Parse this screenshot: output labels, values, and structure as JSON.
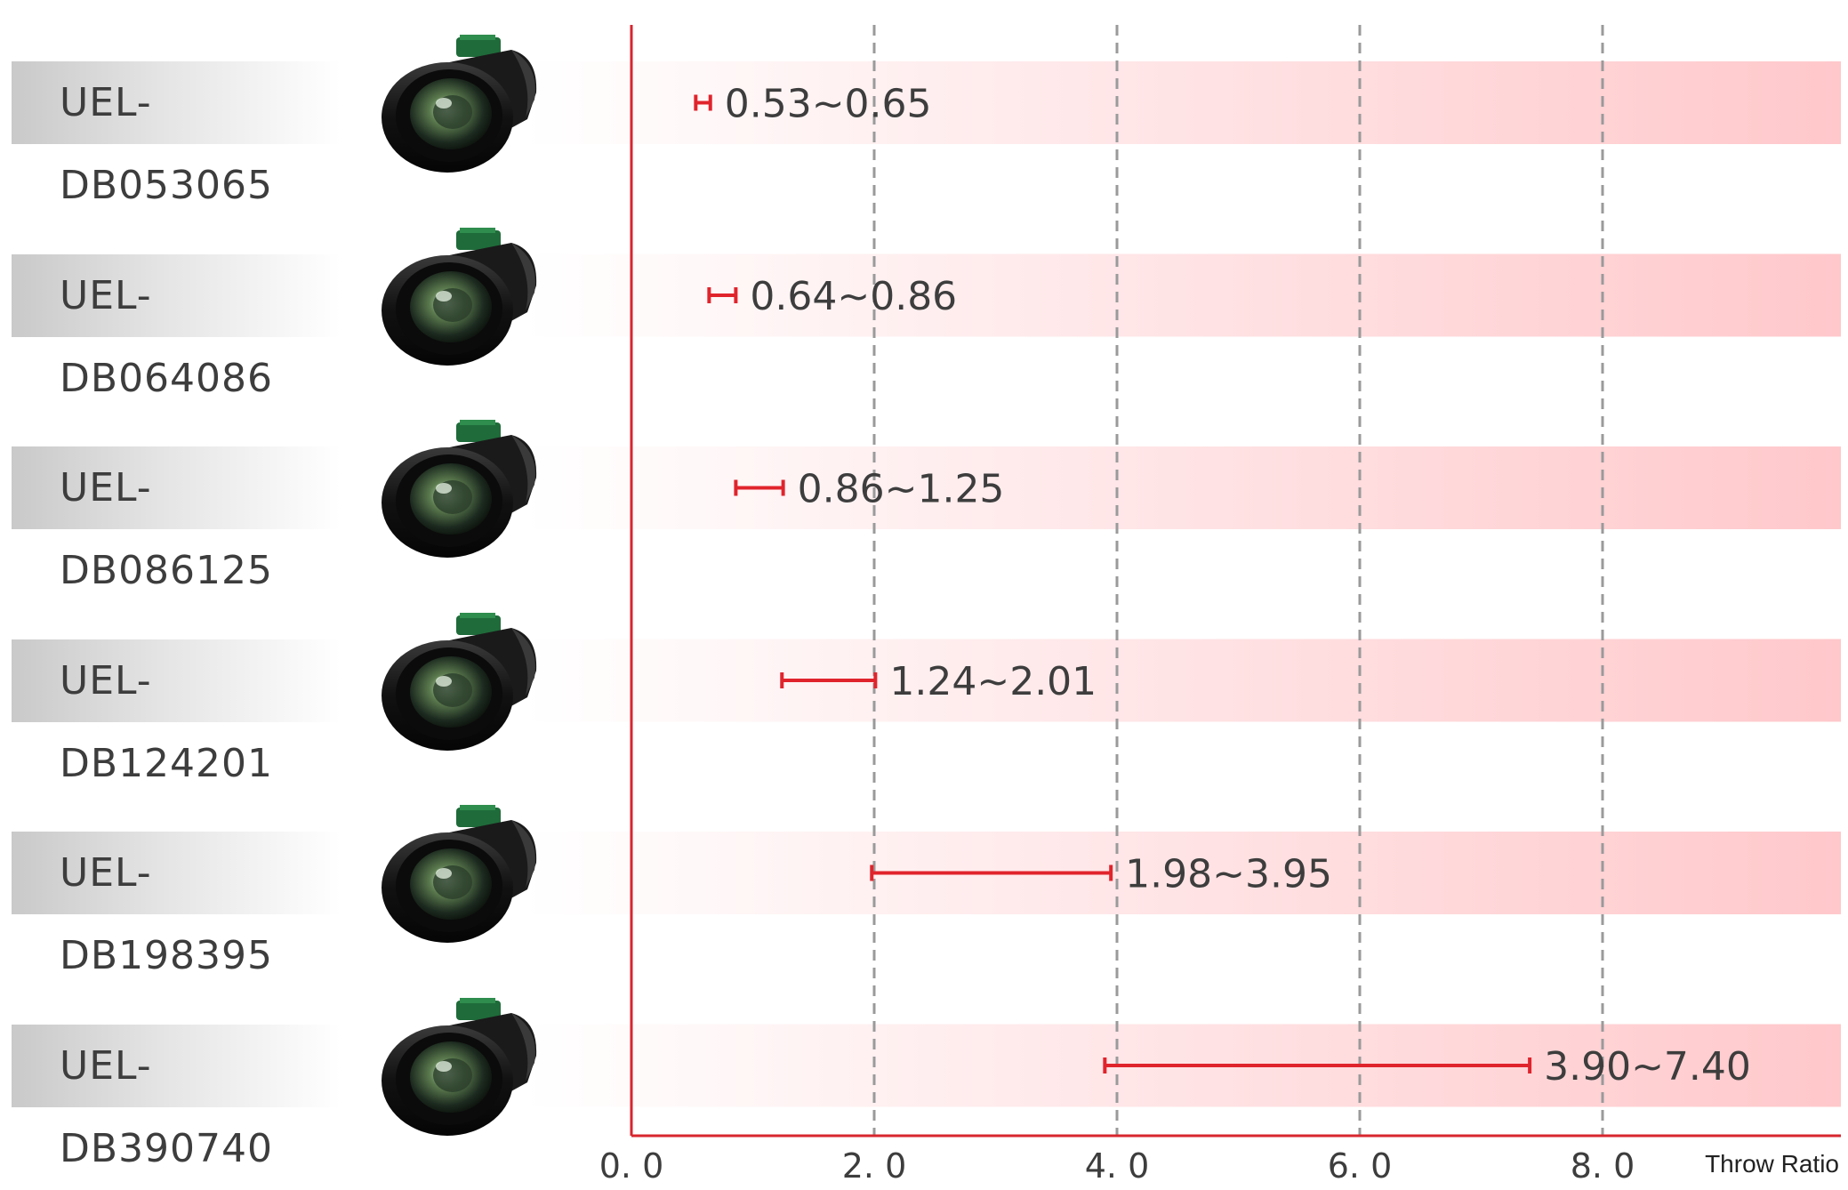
{
  "chart_data": {
    "type": "range-bar",
    "xlabel": "Throw Ratio",
    "xlim": [
      0,
      10
    ],
    "x_ticks": [
      "0. 0",
      "2. 0",
      "4. 0",
      "6. 0",
      "8. 0"
    ],
    "tick_values": [
      0,
      2,
      4,
      6,
      8
    ],
    "grid": "vertical-dashed",
    "series": [
      {
        "name": "UEL-DB053065",
        "low": 0.53,
        "high": 0.65,
        "label": "0.53~0.65"
      },
      {
        "name": "UEL-DB064086",
        "low": 0.64,
        "high": 0.86,
        "label": "0.64~0.86"
      },
      {
        "name": "UEL-DB086125",
        "low": 0.86,
        "high": 1.25,
        "label": "0.86~1.25"
      },
      {
        "name": "UEL-DB124201",
        "low": 1.24,
        "high": 2.01,
        "label": "1.24~2.01"
      },
      {
        "name": "UEL-DB198395",
        "low": 1.98,
        "high": 3.95,
        "label": "1.98~3.95"
      },
      {
        "name": "UEL-DB390740",
        "low": 3.9,
        "high": 7.4,
        "label": "3.90~7.40"
      }
    ]
  },
  "colors": {
    "range_bar": "#e0242c",
    "axis": "#d7262e",
    "band_start": "#ffffff",
    "band_end": "#ffc8cb",
    "grid": "#9a9a9a",
    "label_bg": "#cfcfcf",
    "text": "#3d3d3d"
  },
  "icons": {
    "product_image": "projector-lens-icon"
  }
}
